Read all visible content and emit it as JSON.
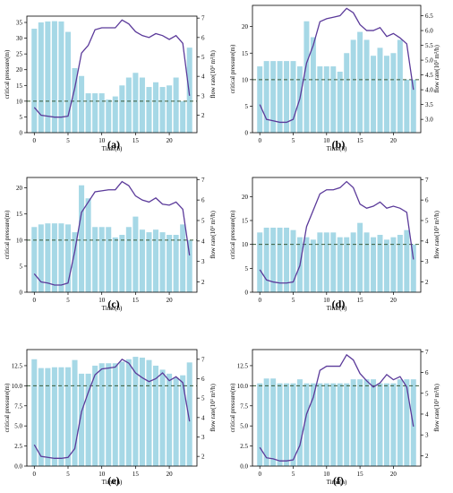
{
  "figure": {
    "panels": [
      "(a)",
      "(b)",
      "(c)",
      "(d)",
      "(e)",
      "(f)"
    ]
  },
  "colors": {
    "bar": "#a6d8e6",
    "line": "#5b3a9a",
    "threshold": "#3a5a3a"
  },
  "chart_data": [
    {
      "type": "bar",
      "label": "(a)",
      "xlabel": "Time(h)",
      "ylabel": "critical pressure(m)",
      "y2label": "flow rate(10³ m³/h)",
      "xticks": [
        0,
        5,
        10,
        15,
        20
      ],
      "ylim": [
        0,
        37
      ],
      "yticks": [
        0,
        5,
        10,
        15,
        20,
        25,
        30,
        35
      ],
      "y2lim": [
        1.1,
        7.1
      ],
      "y2ticks": [
        2,
        3,
        4,
        5,
        6,
        7
      ],
      "threshold": 10,
      "x": [
        0,
        1,
        2,
        3,
        4,
        5,
        6,
        7,
        8,
        9,
        10,
        11,
        12,
        13,
        14,
        15,
        16,
        17,
        18,
        19,
        20,
        21,
        22,
        23
      ],
      "bars": [
        33,
        35,
        35.3,
        35.4,
        35.3,
        32,
        20.5,
        18,
        12.5,
        12.5,
        12.5,
        10.5,
        11.5,
        15,
        17.5,
        19,
        17.5,
        14.5,
        16,
        14.5,
        15,
        17.5,
        10,
        27
      ],
      "flow": [
        2.4,
        2.0,
        1.95,
        1.9,
        1.9,
        1.95,
        3.4,
        5.2,
        5.6,
        6.4,
        6.5,
        6.5,
        6.5,
        6.9,
        6.7,
        6.3,
        6.1,
        6.0,
        6.2,
        6.1,
        5.9,
        6.1,
        5.7,
        3.0
      ]
    },
    {
      "type": "bar",
      "label": "(b)",
      "xlabel": "Time(h)",
      "ylabel": "critical pressure(m)",
      "y2label": "flow rate(10³ m³/h)",
      "xticks": [
        0,
        5,
        10,
        15,
        20
      ],
      "ylim": [
        0,
        24
      ],
      "yticks": [
        0,
        5,
        10,
        15,
        20
      ],
      "y2lim": [
        2.55,
        6.85
      ],
      "y2ticks": [
        3.0,
        3.5,
        4.0,
        4.5,
        5.0,
        5.5,
        6.0,
        6.5
      ],
      "threshold": 10,
      "x": [
        0,
        1,
        2,
        3,
        4,
        5,
        6,
        7,
        8,
        9,
        10,
        11,
        12,
        13,
        14,
        15,
        16,
        17,
        18,
        19,
        20,
        21,
        22,
        23
      ],
      "bars": [
        12.5,
        13.5,
        13.5,
        13.5,
        13.5,
        13.5,
        12.5,
        21,
        18,
        12.5,
        12.5,
        12.5,
        11.5,
        15,
        17.5,
        19,
        17.5,
        14.5,
        16,
        14.5,
        15,
        17.5,
        10,
        10
      ],
      "flow": [
        3.5,
        3.0,
        2.95,
        2.9,
        2.9,
        3.0,
        3.7,
        4.9,
        5.5,
        6.3,
        6.4,
        6.45,
        6.5,
        6.75,
        6.6,
        6.2,
        6.0,
        6.0,
        6.1,
        5.8,
        5.9,
        5.75,
        5.55,
        4.0
      ]
    },
    {
      "type": "bar",
      "label": "(c)",
      "xlabel": "Time(h)",
      "ylabel": "critical pressure(m)",
      "y2label": "flow rate(10³ m³/h)",
      "xticks": [
        0,
        5,
        10,
        15,
        20
      ],
      "ylim": [
        0,
        22
      ],
      "yticks": [
        0,
        5,
        10,
        15,
        20
      ],
      "y2lim": [
        1.5,
        7.1
      ],
      "y2ticks": [
        2,
        3,
        4,
        5,
        6,
        7
      ],
      "threshold": 10,
      "x": [
        0,
        1,
        2,
        3,
        4,
        5,
        6,
        7,
        8,
        9,
        10,
        11,
        12,
        13,
        14,
        15,
        16,
        17,
        18,
        19,
        20,
        21,
        22,
        23
      ],
      "bars": [
        12.5,
        13,
        13.2,
        13.2,
        13.2,
        13,
        11.5,
        20.5,
        18,
        12.5,
        12.5,
        12.5,
        10.5,
        11,
        12.5,
        14.5,
        12,
        11.5,
        12,
        11.5,
        11,
        11,
        13,
        10
      ],
      "flow": [
        2.4,
        2.0,
        1.95,
        1.85,
        1.85,
        1.95,
        3.5,
        5.4,
        5.9,
        6.4,
        6.45,
        6.5,
        6.5,
        6.9,
        6.7,
        6.2,
        6.0,
        5.9,
        6.1,
        5.8,
        5.75,
        5.9,
        5.55,
        3.3
      ]
    },
    {
      "type": "bar",
      "label": "(d)",
      "xlabel": "Time(h)",
      "ylabel": "critical pressure(m)",
      "y2label": "flow rate(10³ m³/h)",
      "xticks": [
        0,
        5,
        10,
        15,
        20
      ],
      "ylim": [
        0,
        24
      ],
      "yticks": [
        0,
        5,
        10,
        15,
        20
      ],
      "y2lim": [
        1.5,
        7.1
      ],
      "y2ticks": [
        2,
        3,
        4,
        5,
        6,
        7
      ],
      "threshold": 10,
      "x": [
        0,
        1,
        2,
        3,
        4,
        5,
        6,
        7,
        8,
        9,
        10,
        11,
        12,
        13,
        14,
        15,
        16,
        17,
        18,
        19,
        20,
        21,
        22,
        23
      ],
      "bars": [
        12.5,
        13.5,
        13.5,
        13.5,
        13.5,
        13,
        11.5,
        11.5,
        11,
        12.5,
        12.5,
        12.5,
        11.5,
        11.5,
        12.5,
        14.5,
        12.5,
        11.5,
        12,
        11,
        11.5,
        12,
        13,
        10
      ],
      "flow": [
        2.6,
        2.1,
        2.0,
        1.95,
        1.95,
        2.0,
        2.8,
        4.7,
        5.5,
        6.3,
        6.5,
        6.5,
        6.6,
        6.9,
        6.6,
        5.8,
        5.6,
        5.7,
        5.9,
        5.6,
        5.7,
        5.6,
        5.4,
        3.1
      ]
    },
    {
      "type": "bar",
      "label": "(e)",
      "xlabel": "Time(h)",
      "ylabel": "critical pressure(m)",
      "y2label": "flow rate(10³ m³/h)",
      "xticks": [
        0,
        5,
        10,
        15,
        20
      ],
      "ylim": [
        0,
        14.5
      ],
      "yticks": [
        0.0,
        2.5,
        5.0,
        7.5,
        10.0,
        12.5
      ],
      "y2lim": [
        1.5,
        7.5
      ],
      "y2ticks": [
        2,
        3,
        4,
        5,
        6,
        7
      ],
      "threshold": 10,
      "x": [
        0,
        1,
        2,
        3,
        4,
        5,
        6,
        7,
        8,
        9,
        10,
        11,
        12,
        13,
        14,
        15,
        16,
        17,
        18,
        19,
        20,
        21,
        22,
        23
      ],
      "bars": [
        13.3,
        12.2,
        12.2,
        12.3,
        12.3,
        12.3,
        13.2,
        11.5,
        11.5,
        12.5,
        12.8,
        12.8,
        12.8,
        13,
        13.3,
        13.6,
        13.5,
        13.2,
        12.5,
        12,
        11.5,
        11,
        11.3,
        12.9
      ],
      "flow": [
        2.6,
        2.0,
        1.95,
        1.9,
        1.9,
        1.95,
        2.4,
        4.3,
        5.3,
        6.2,
        6.5,
        6.55,
        6.6,
        7.0,
        6.8,
        6.3,
        6.05,
        5.85,
        6.0,
        6.3,
        5.9,
        6.1,
        5.8,
        3.8
      ]
    },
    {
      "type": "bar",
      "label": "(f)",
      "xlabel": "Time(h)",
      "ylabel": "critical pressure(m)",
      "y2label": "flow rate(10³ m³/h)",
      "xticks": [
        0,
        5,
        10,
        15,
        20
      ],
      "ylim": [
        0,
        14.5
      ],
      "yticks": [
        0.0,
        2.5,
        5.0,
        7.5,
        10.0,
        12.5
      ],
      "y2lim": [
        1.5,
        7.1
      ],
      "y2ticks": [
        2,
        3,
        4,
        5,
        6,
        7
      ],
      "threshold": 10,
      "x": [
        0,
        1,
        2,
        3,
        4,
        5,
        6,
        7,
        8,
        9,
        10,
        11,
        12,
        13,
        14,
        15,
        16,
        17,
        18,
        19,
        20,
        21,
        22,
        23
      ],
      "bars": [
        10.3,
        10.9,
        10.9,
        10.3,
        10.3,
        10.3,
        10.8,
        10.3,
        10.3,
        10.3,
        10.3,
        10.3,
        10.3,
        10.3,
        10.8,
        10.8,
        10.8,
        10.8,
        10.3,
        10.3,
        10.3,
        10.8,
        10.8,
        10.8
      ],
      "flow": [
        2.4,
        1.9,
        1.85,
        1.75,
        1.75,
        1.8,
        2.5,
        4.0,
        4.8,
        6.1,
        6.3,
        6.3,
        6.3,
        6.85,
        6.6,
        5.95,
        5.6,
        5.3,
        5.5,
        5.9,
        5.65,
        5.8,
        5.3,
        3.4
      ]
    }
  ]
}
